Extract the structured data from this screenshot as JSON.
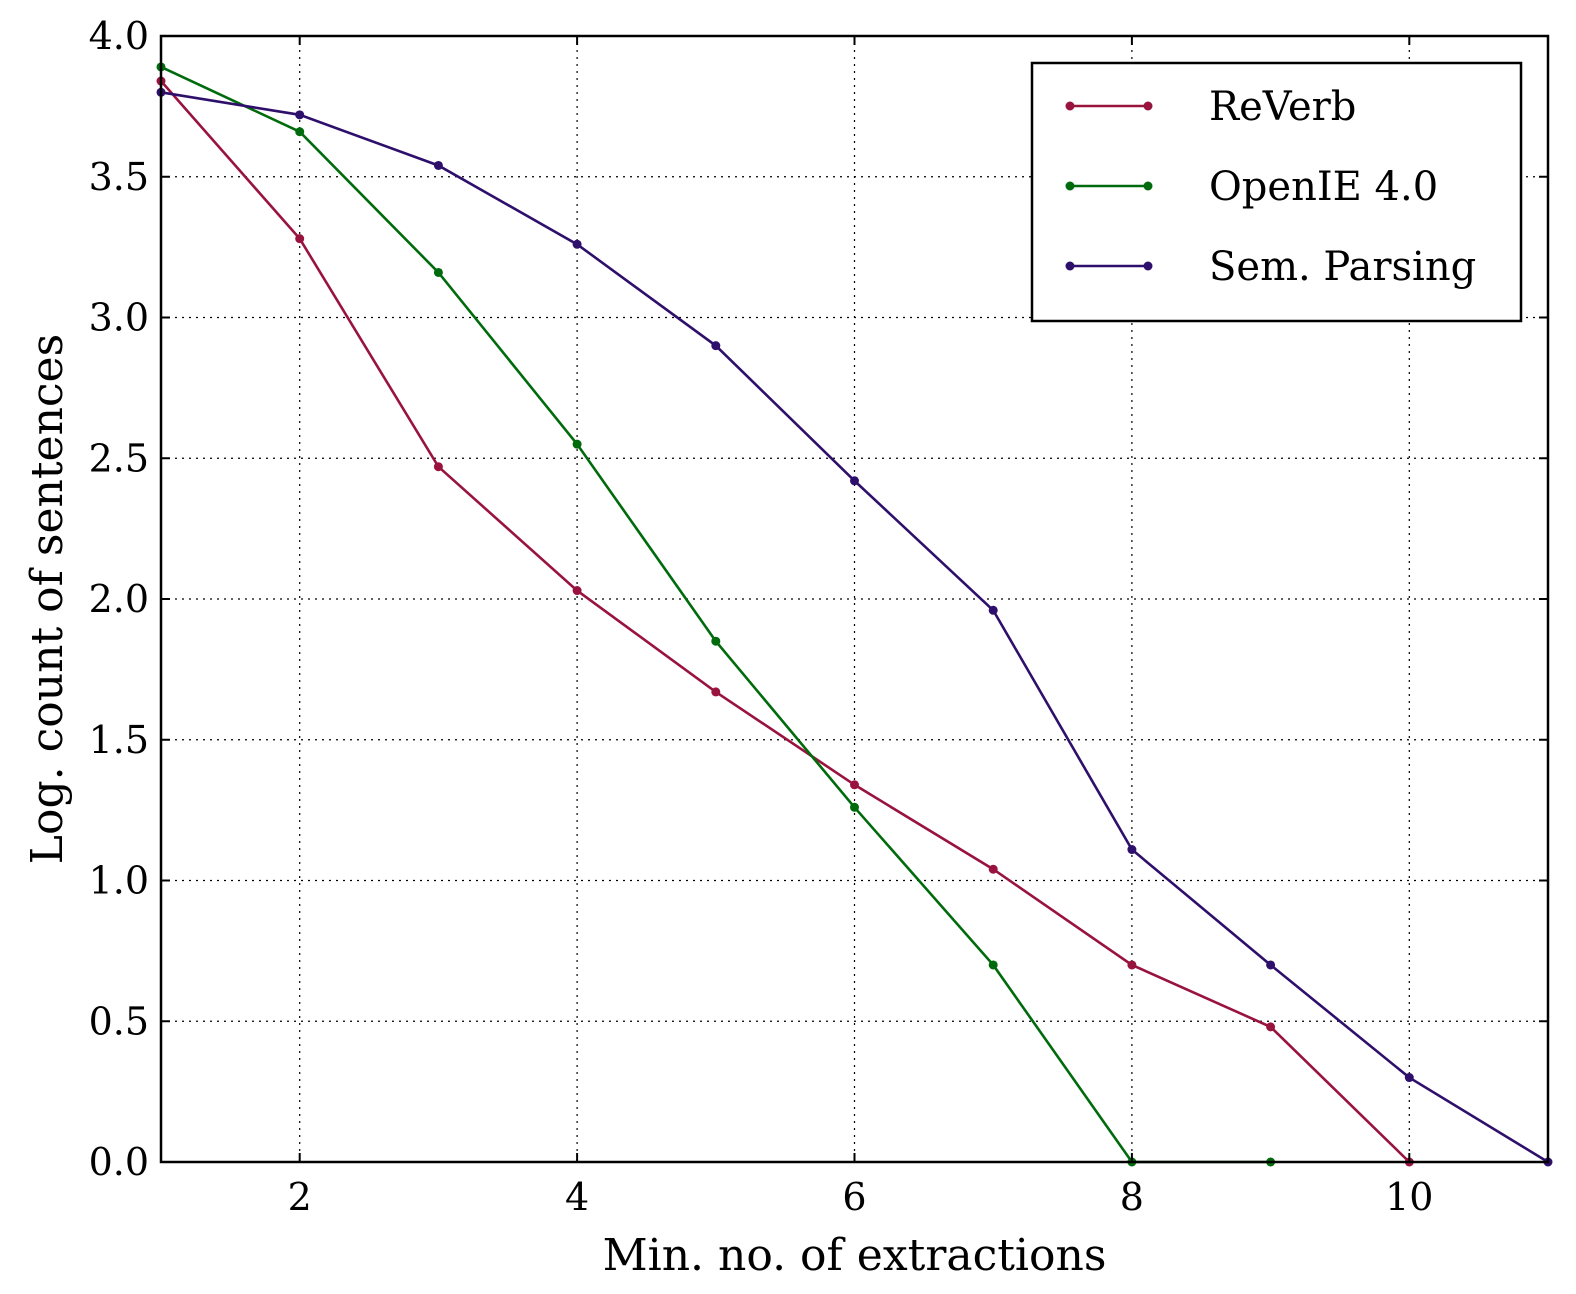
{
  "chart_data": {
    "type": "line",
    "xlabel": "Min. no. of extractions",
    "ylabel": "Log. count of sentences",
    "xlim": [
      1,
      11
    ],
    "ylim": [
      0.0,
      4.0
    ],
    "x_ticks": [
      2,
      4,
      6,
      8,
      10
    ],
    "x_tick_labels": [
      "2",
      "4",
      "6",
      "8",
      "10"
    ],
    "y_ticks": [
      0.0,
      0.5,
      1.0,
      1.5,
      2.0,
      2.5,
      3.0,
      3.5,
      4.0
    ],
    "y_tick_labels": [
      "0.0",
      "0.5",
      "1.0",
      "1.5",
      "2.0",
      "2.5",
      "3.0",
      "3.5",
      "4.0"
    ],
    "grid": true,
    "legend_position": "top-right",
    "series": [
      {
        "name": "ReVerb",
        "color": "#99133f",
        "x": [
          1,
          2,
          3,
          4,
          5,
          6,
          7,
          8,
          9,
          10
        ],
        "y": [
          3.84,
          3.28,
          2.47,
          2.03,
          1.67,
          1.34,
          1.04,
          0.7,
          0.48,
          0.0
        ]
      },
      {
        "name": "OpenIE 4.0",
        "color": "#006b0c",
        "x": [
          1,
          2,
          3,
          4,
          5,
          6,
          7,
          8,
          9
        ],
        "y": [
          3.89,
          3.66,
          3.16,
          2.55,
          1.85,
          1.26,
          0.7,
          0.0,
          0.0
        ]
      },
      {
        "name": "Sem. Parsing",
        "color": "#2e0f6b",
        "x": [
          1,
          2,
          3,
          4,
          5,
          6,
          7,
          8,
          9,
          10,
          11
        ],
        "y": [
          3.8,
          3.72,
          3.54,
          3.26,
          2.9,
          2.42,
          1.96,
          1.11,
          0.7,
          0.3,
          0.0
        ]
      }
    ]
  }
}
